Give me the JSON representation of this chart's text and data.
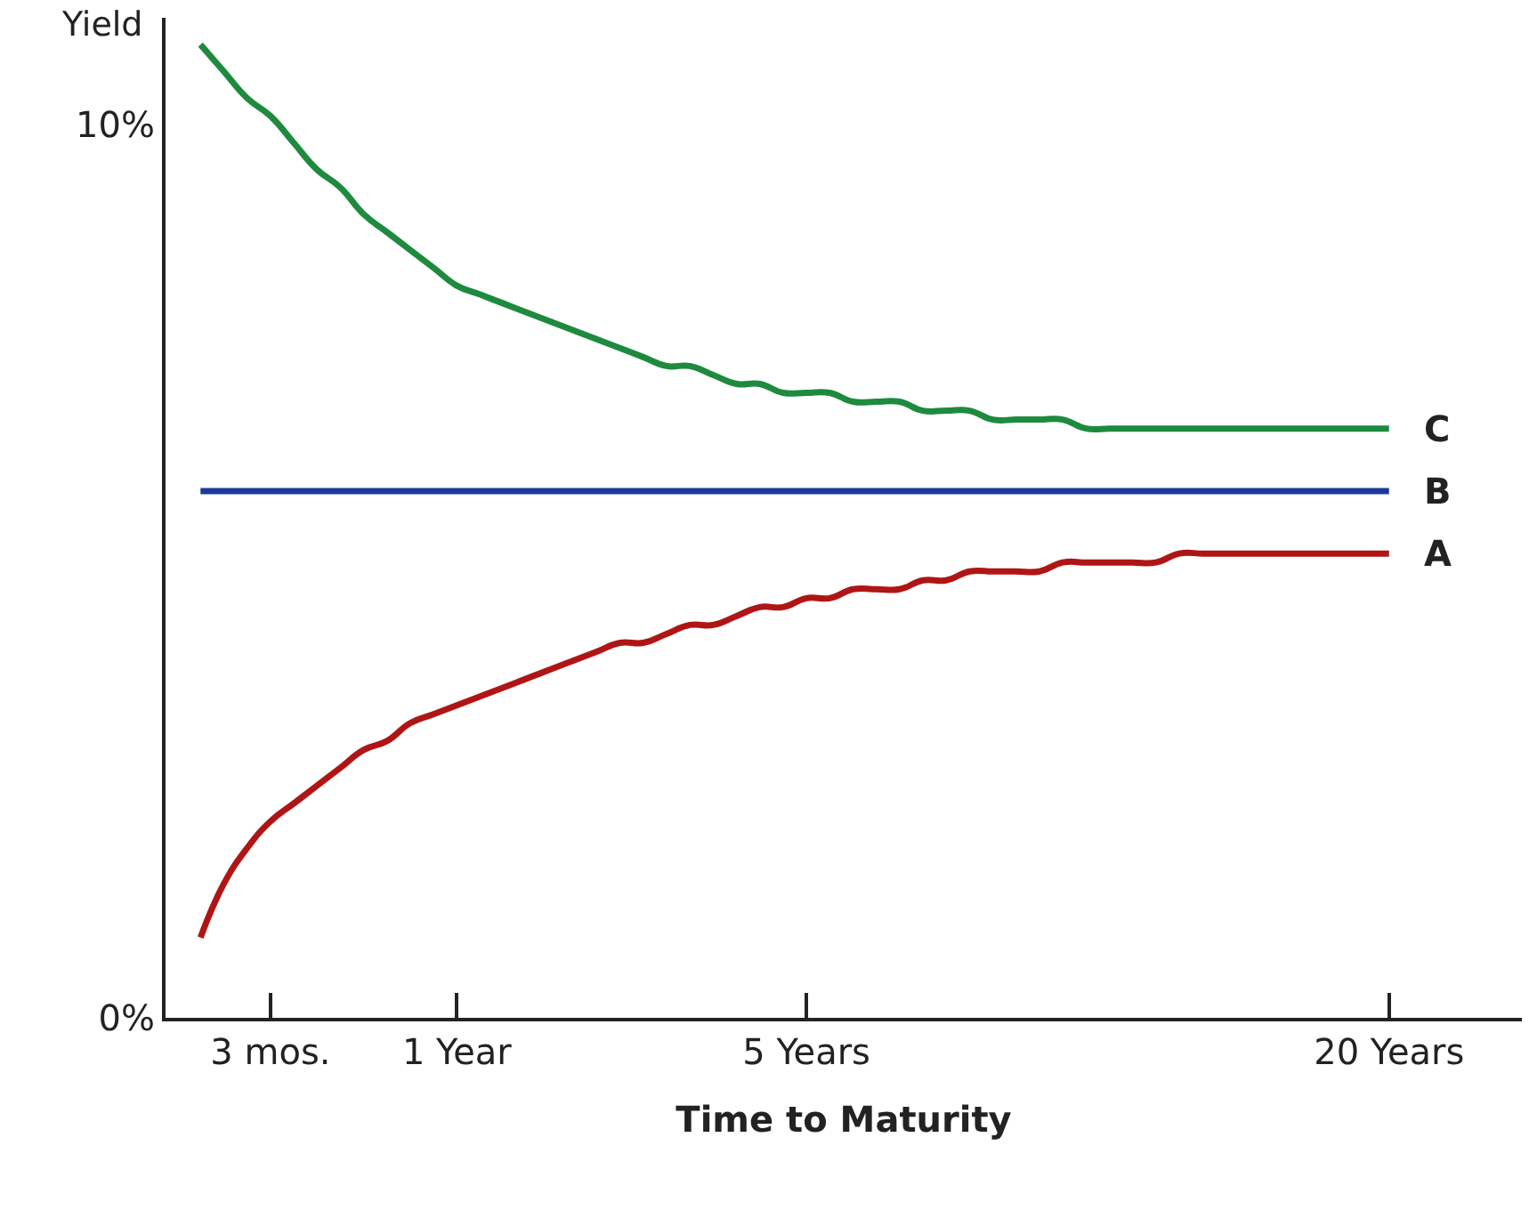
{
  "chart_data": {
    "type": "line",
    "ylabel": "Yield",
    "xlabel": "Time to Maturity",
    "categories": [
      null,
      null,
      null,
      "3 mos.",
      null,
      null,
      null,
      null,
      null,
      null,
      null,
      "1 Year",
      null,
      null,
      null,
      null,
      null,
      null,
      null,
      null,
      null,
      null,
      null,
      null,
      null,
      null,
      "5 Years",
      null,
      null,
      null,
      null,
      null,
      null,
      null,
      null,
      null,
      null,
      null,
      null,
      null,
      null,
      null,
      null,
      null,
      null,
      null,
      null,
      null,
      null,
      null,
      null,
      "20 Years"
    ],
    "ylim": [
      0,
      11.2
    ],
    "yticks": [
      {
        "value": 0,
        "label": "0%"
      },
      {
        "value": 10,
        "label": "10%"
      }
    ],
    "legend": false,
    "marker": "none",
    "line_style": "solid",
    "series": [
      {
        "name": "C",
        "color": "#1e8a3e",
        "values": [
          10.9,
          10.6,
          10.3,
          10.1,
          9.8,
          9.5,
          9.3,
          9.0,
          8.8,
          8.6,
          8.4,
          8.2,
          8.1,
          8.0,
          7.9,
          7.8,
          7.7,
          7.6,
          7.5,
          7.4,
          7.3,
          7.3,
          7.2,
          7.1,
          7.1,
          7.0,
          7.0,
          7.0,
          6.9,
          6.9,
          6.9,
          6.8,
          6.8,
          6.8,
          6.7,
          6.7,
          6.7,
          6.7,
          6.6,
          6.6,
          6.6,
          6.6,
          6.6,
          6.6,
          6.6,
          6.6,
          6.6,
          6.6,
          6.6,
          6.6,
          6.6,
          6.6
        ]
      },
      {
        "name": "B",
        "color": "#1a3a9a",
        "values": [
          5.9,
          5.9,
          5.9,
          5.9,
          5.9,
          5.9,
          5.9,
          5.9,
          5.9,
          5.9,
          5.9,
          5.9,
          5.9,
          5.9,
          5.9,
          5.9,
          5.9,
          5.9,
          5.9,
          5.9,
          5.9,
          5.9,
          5.9,
          5.9,
          5.9,
          5.9,
          5.9,
          5.9,
          5.9,
          5.9,
          5.9,
          5.9,
          5.9,
          5.9,
          5.9,
          5.9,
          5.9,
          5.9,
          5.9,
          5.9,
          5.9,
          5.9,
          5.9,
          5.9,
          5.9,
          5.9,
          5.9,
          5.9,
          5.9,
          5.9,
          5.9,
          5.9
        ]
      },
      {
        "name": "A",
        "color": "#b01515",
        "values": [
          0.9,
          1.5,
          1.9,
          2.2,
          2.4,
          2.6,
          2.8,
          3.0,
          3.1,
          3.3,
          3.4,
          3.5,
          3.6,
          3.7,
          3.8,
          3.9,
          4.0,
          4.1,
          4.2,
          4.2,
          4.3,
          4.4,
          4.4,
          4.5,
          4.6,
          4.6,
          4.7,
          4.7,
          4.8,
          4.8,
          4.8,
          4.9,
          4.9,
          5.0,
          5.0,
          5.0,
          5.0,
          5.1,
          5.1,
          5.1,
          5.1,
          5.1,
          5.2,
          5.2,
          5.2,
          5.2,
          5.2,
          5.2,
          5.2,
          5.2,
          5.2,
          5.2
        ]
      }
    ]
  }
}
